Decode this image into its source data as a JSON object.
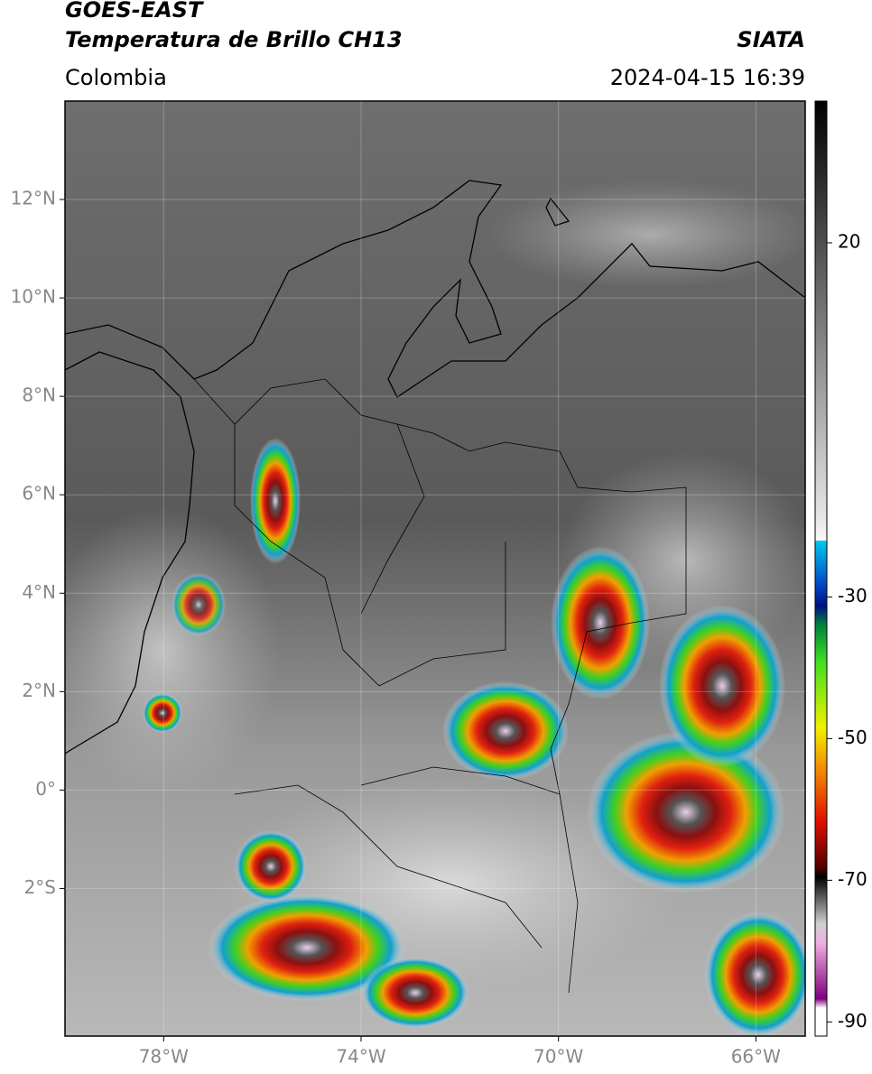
{
  "header": {
    "title": "GOES-EAST",
    "subtitle": "Temperatura de Brillo CH13",
    "source": "SIATA",
    "region": "Colombia",
    "datetime": "2024-04-15 16:39"
  },
  "map": {
    "lonlim": [
      -80,
      -65
    ],
    "latlim": [
      -5,
      14
    ],
    "lon_ticks": [
      {
        "value": -78,
        "label": "78°W"
      },
      {
        "value": -74,
        "label": "74°W"
      },
      {
        "value": -70,
        "label": "70°W"
      },
      {
        "value": -66,
        "label": "66°W"
      }
    ],
    "lat_ticks": [
      {
        "value": 12,
        "label": "12°N"
      },
      {
        "value": 10,
        "label": "10°N"
      },
      {
        "value": 8,
        "label": "8°N"
      },
      {
        "value": 6,
        "label": "6°N"
      },
      {
        "value": 4,
        "label": "4°N"
      },
      {
        "value": 2,
        "label": "2°N"
      },
      {
        "value": 0,
        "label": "0°"
      },
      {
        "value": -2,
        "label": "2°S"
      }
    ],
    "grid": true
  },
  "colorbar": {
    "lim": [
      -92,
      40
    ],
    "ticks": [
      20,
      -30,
      -50,
      -70,
      -90
    ]
  }
}
